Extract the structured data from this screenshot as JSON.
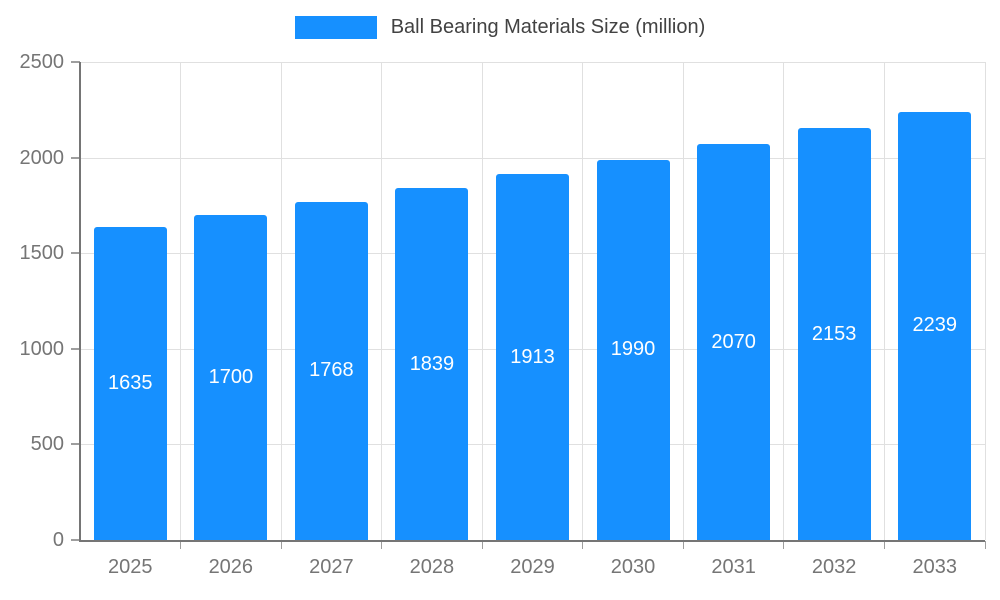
{
  "chart_data": {
    "type": "bar",
    "title": "Ball Bearing Materials Size (million)",
    "categories": [
      "2025",
      "2026",
      "2027",
      "2028",
      "2029",
      "2030",
      "2031",
      "2032",
      "2033"
    ],
    "values": [
      1635,
      1700,
      1768,
      1839,
      1913,
      1990,
      2070,
      2153,
      2239
    ],
    "xlabel": "",
    "ylabel": "",
    "ylim": [
      0,
      2500
    ],
    "y_ticks": [
      0,
      500,
      1000,
      1500,
      2000,
      2500
    ],
    "grid": true,
    "legend_position": "top",
    "bar_color": "#1690ff",
    "value_label_color": "#ffffff",
    "axis_label_color": "#757575",
    "grid_color": "#e0e0e0",
    "legend_text_color": "#424242"
  }
}
